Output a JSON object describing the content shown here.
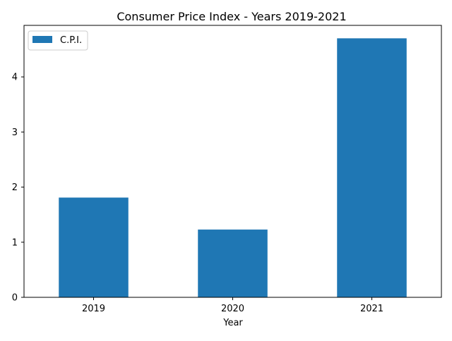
{
  "chart_data": {
    "type": "bar",
    "title": "Consumer Price Index - Years 2019-2021",
    "xlabel": "Year",
    "ylabel": "",
    "categories": [
      "2019",
      "2020",
      "2021"
    ],
    "series": [
      {
        "name": "C.P.I.",
        "values": [
          1.81,
          1.23,
          4.7
        ],
        "color": "#1f77b4"
      }
    ],
    "ylim": [
      0,
      4.935
    ],
    "yticks": [
      0,
      1,
      2,
      3,
      4
    ],
    "ytick_labels": [
      "0",
      "1",
      "2",
      "3",
      "4"
    ],
    "grid": false,
    "legend": {
      "location": "upper left",
      "entries": [
        "C.P.I."
      ]
    }
  }
}
